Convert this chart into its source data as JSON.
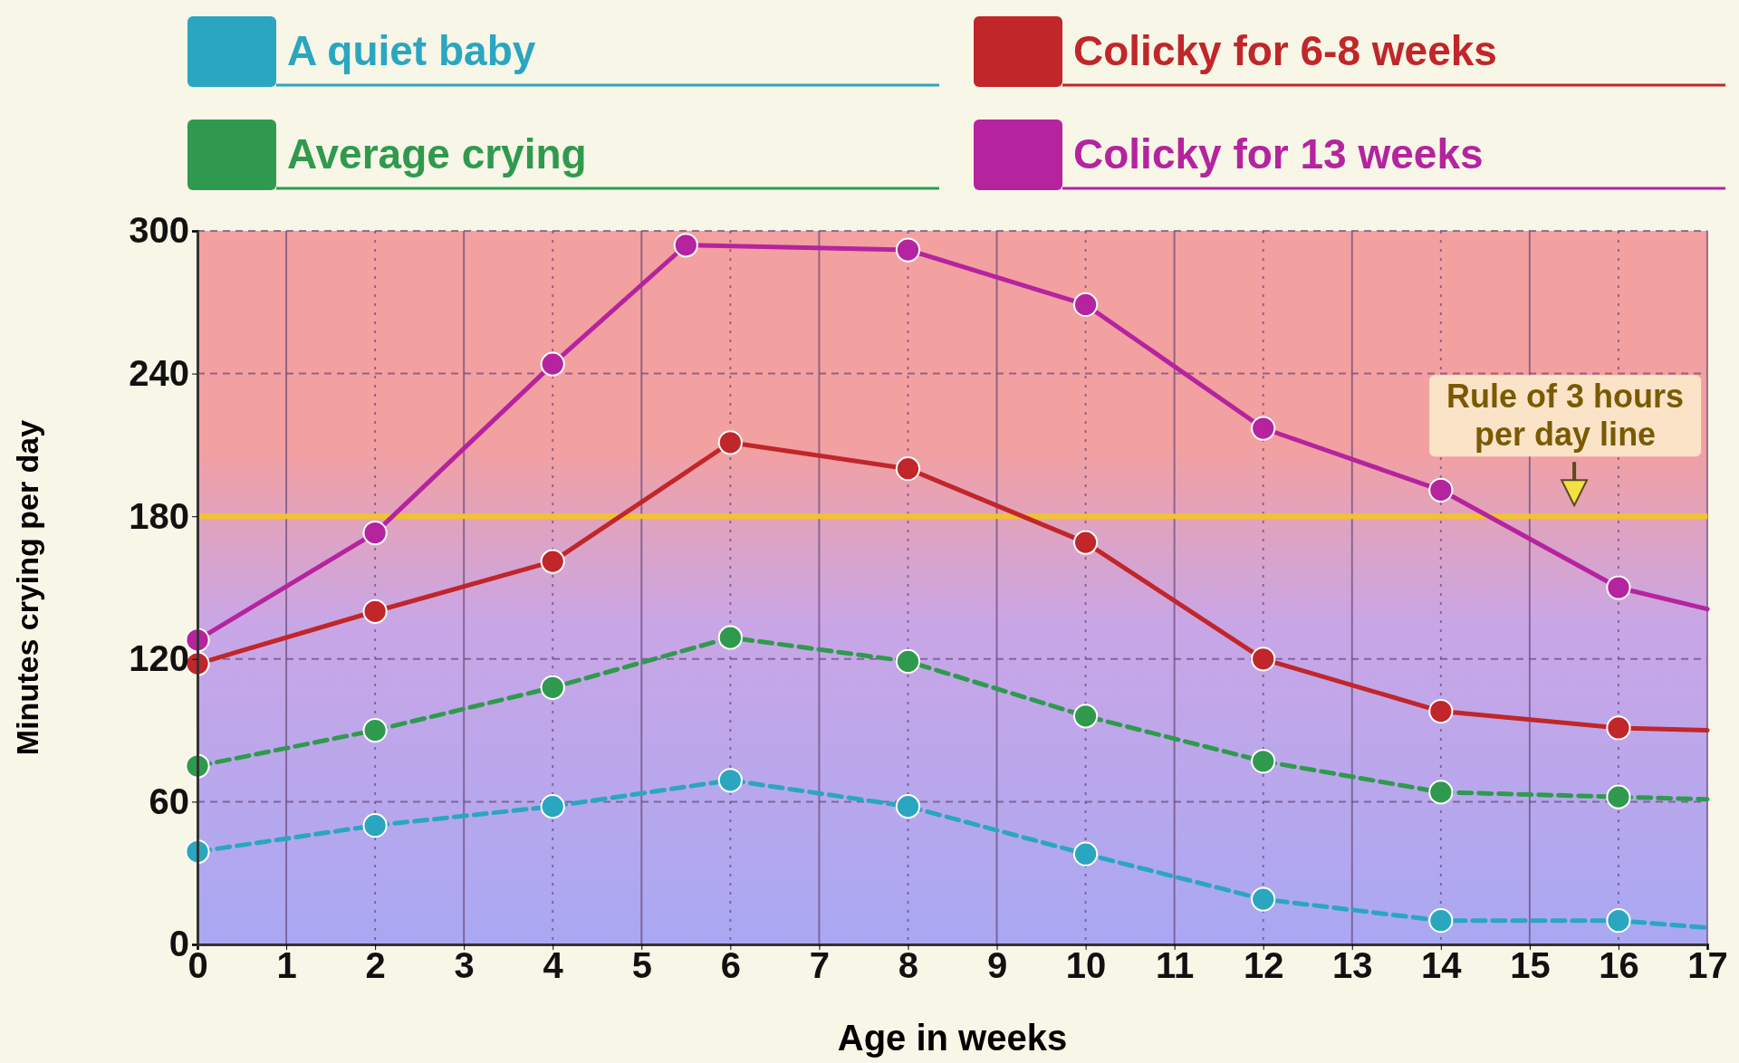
{
  "chart_data": {
    "type": "line",
    "xlabel": "Age in weeks",
    "ylabel": "Minutes crying per day",
    "xlim": [
      0,
      17
    ],
    "xticks": [
      0,
      1,
      2,
      3,
      4,
      5,
      6,
      7,
      8,
      9,
      10,
      11,
      12,
      13,
      14,
      15,
      16,
      17
    ],
    "ylim": [
      0,
      300
    ],
    "yticks": [
      0,
      60,
      120,
      180,
      240,
      300
    ],
    "grid": true,
    "legend": "top",
    "marker": "circle",
    "series": [
      {
        "name": "A quiet baby",
        "color": "#2aa6c0",
        "line_style": "dashed",
        "x": [
          0,
          2,
          4,
          6,
          8,
          10,
          12,
          14,
          16,
          17
        ],
        "values": [
          39,
          50,
          58,
          69,
          58,
          38,
          19,
          10,
          10,
          7
        ]
      },
      {
        "name": "Average crying",
        "color": "#2f9a4e",
        "line_style": "dashed",
        "x": [
          0,
          2,
          4,
          6,
          8,
          10,
          12,
          14,
          16,
          17
        ],
        "values": [
          75,
          90,
          108,
          129,
          119,
          96,
          77,
          64,
          62,
          61
        ]
      },
      {
        "name": "Colicky for 6-8 weeks",
        "color": "#c0262a",
        "line_style": "solid",
        "x": [
          0,
          2,
          4,
          6,
          8,
          10,
          12,
          14,
          16,
          17
        ],
        "values": [
          118,
          140,
          161,
          211,
          200,
          169,
          120,
          98,
          91,
          90
        ]
      },
      {
        "name": "Colicky for 13 weeks",
        "color": "#b5239f",
        "line_style": "solid",
        "x": [
          0,
          2,
          4,
          5.5,
          8,
          10,
          12,
          14,
          16,
          17
        ],
        "values": [
          128,
          173,
          244,
          294,
          292,
          269,
          217,
          191,
          150,
          141
        ]
      }
    ],
    "ref_lines": [
      {
        "axis": "y",
        "value": 180,
        "label": "Rule of 3 hours per day line",
        "color": "#f2c230"
      }
    ]
  }
}
